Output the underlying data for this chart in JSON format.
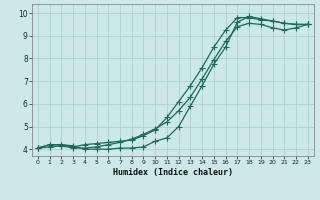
{
  "xlabel": "Humidex (Indice chaleur)",
  "background_color": "#cce8e8",
  "grid_color": "#aacccc",
  "line_color": "#1a6b5a",
  "xlim": [
    -0.5,
    23.5
  ],
  "ylim": [
    3.7,
    10.4
  ],
  "xticks": [
    0,
    1,
    2,
    3,
    4,
    5,
    6,
    7,
    8,
    9,
    10,
    11,
    12,
    13,
    14,
    15,
    16,
    17,
    18,
    19,
    20,
    21,
    22,
    23
  ],
  "yticks": [
    4,
    5,
    6,
    7,
    8,
    9,
    10
  ],
  "line1_x": [
    0,
    1,
    2,
    3,
    4,
    5,
    6,
    7,
    8,
    9,
    10,
    11,
    12,
    13,
    14,
    15,
    16,
    17,
    18,
    19,
    20,
    21,
    22,
    23
  ],
  "line1_y": [
    4.05,
    4.2,
    4.2,
    4.15,
    4.0,
    4.0,
    4.0,
    4.05,
    4.05,
    4.1,
    4.35,
    4.5,
    5.0,
    5.9,
    6.8,
    7.75,
    8.5,
    9.6,
    9.85,
    9.75,
    9.65,
    9.55,
    9.5,
    9.5
  ],
  "line2_x": [
    0,
    1,
    2,
    3,
    4,
    5,
    6,
    7,
    8,
    9,
    10,
    11,
    12,
    13,
    14,
    15,
    16,
    17,
    18,
    19,
    20,
    21,
    22,
    23
  ],
  "line2_y": [
    4.05,
    4.2,
    4.2,
    4.1,
    4.2,
    4.25,
    4.3,
    4.35,
    4.4,
    4.6,
    4.85,
    5.4,
    6.1,
    6.8,
    7.6,
    8.5,
    9.25,
    9.8,
    9.8,
    9.7,
    9.65,
    9.55,
    9.5,
    9.5
  ],
  "line3_x": [
    0,
    1,
    2,
    3,
    4,
    5,
    6,
    7,
    8,
    9,
    10,
    11,
    12,
    13,
    14,
    15,
    16,
    17,
    18,
    19,
    20,
    21,
    22,
    23
  ],
  "line3_y": [
    4.05,
    4.1,
    4.15,
    4.05,
    4.05,
    4.1,
    4.2,
    4.3,
    4.45,
    4.65,
    4.9,
    5.2,
    5.7,
    6.3,
    7.1,
    7.95,
    8.75,
    9.4,
    9.55,
    9.5,
    9.35,
    9.25,
    9.35,
    9.5
  ]
}
